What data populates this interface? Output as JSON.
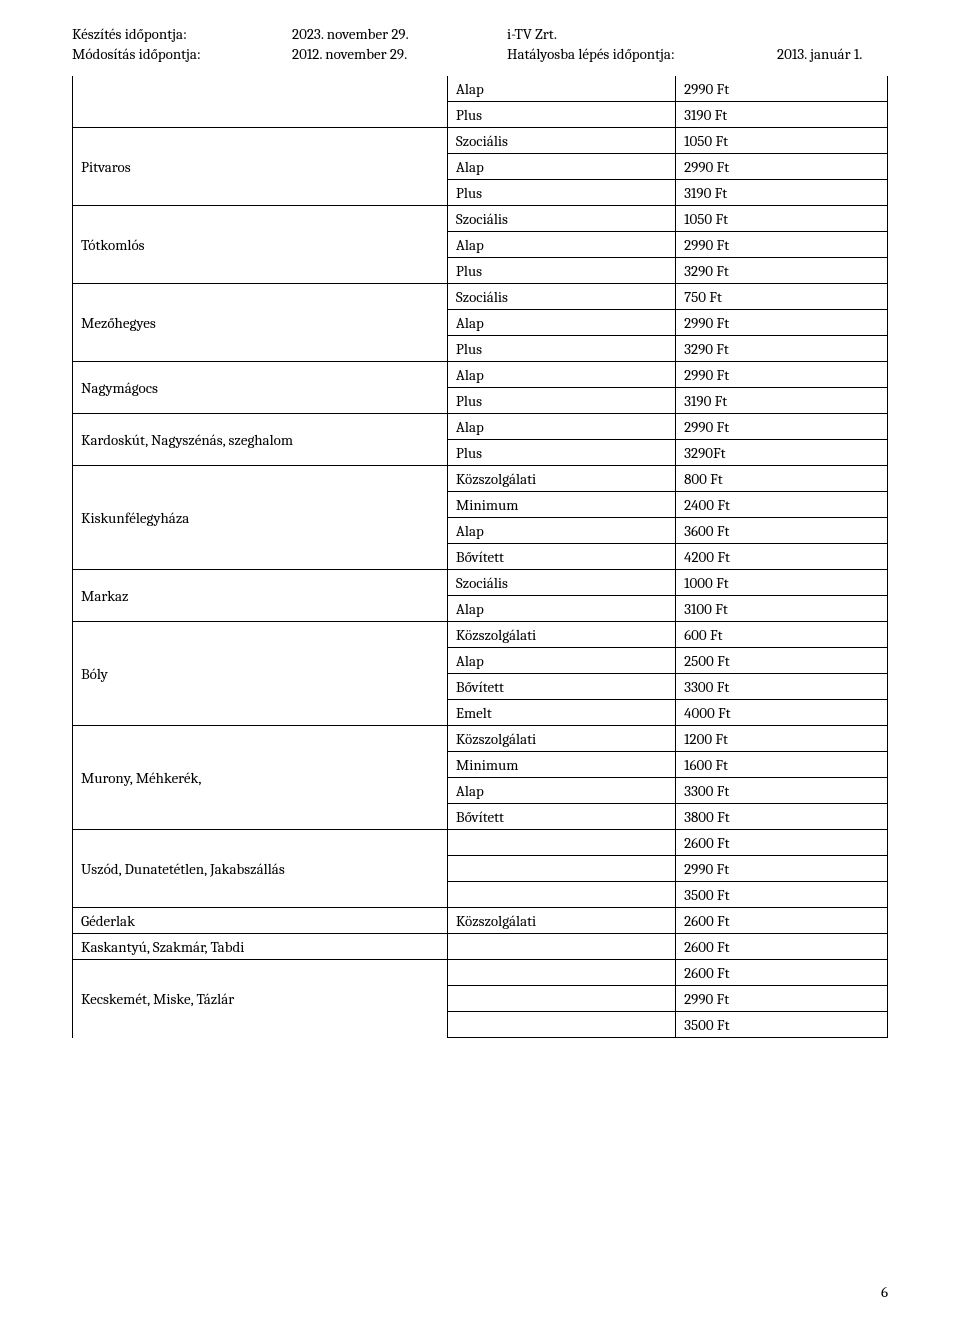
{
  "header": {
    "labels": {
      "keszites": "Készítés időpontja:",
      "modositas": "Módosítás időpontja:"
    },
    "dates": {
      "keszites": "2023. november 29.",
      "modositas": "2012. november 29."
    },
    "right": {
      "company": "i-TV Zrt.",
      "hataly_label": "Hatályosba lépés időpontja:",
      "hataly_date": "2013. január 1."
    }
  },
  "groups": [
    {
      "name": "",
      "tiers": [
        {
          "label": "Alap",
          "price": "2990 Ft"
        },
        {
          "label": "Plus",
          "price": "3190 Ft"
        }
      ]
    },
    {
      "name": "Pitvaros",
      "tiers": [
        {
          "label": "Szociális",
          "price": "1050 Ft"
        },
        {
          "label": "Alap",
          "price": "2990 Ft"
        },
        {
          "label": "Plus",
          "price": "3190 Ft"
        }
      ]
    },
    {
      "name": "Tótkomlós",
      "tiers": [
        {
          "label": "Szociális",
          "price": "1050 Ft"
        },
        {
          "label": "Alap",
          "price": "2990 Ft"
        },
        {
          "label": "Plus",
          "price": "3290 Ft"
        }
      ]
    },
    {
      "name": "Mezőhegyes",
      "tiers": [
        {
          "label": "Szociális",
          "price": "750 Ft"
        },
        {
          "label": "Alap",
          "price": "2990 Ft"
        },
        {
          "label": "Plus",
          "price": "3290 Ft"
        }
      ]
    },
    {
      "name": "Nagymágocs",
      "tiers": [
        {
          "label": "Alap",
          "price": "2990 Ft"
        },
        {
          "label": "Plus",
          "price": "3190 Ft"
        }
      ]
    },
    {
      "name": "Kardoskút, Nagyszénás, szeghalom",
      "tiers": [
        {
          "label": "Alap",
          "price": "2990 Ft"
        },
        {
          "label": "Plus",
          "price": "3290Ft"
        }
      ]
    },
    {
      "name": "Kiskunfélegyháza",
      "tiers": [
        {
          "label": "Közszolgálati",
          "price": "800 Ft"
        },
        {
          "label": "Minimum",
          "price": "2400 Ft"
        },
        {
          "label": "Alap",
          "price": "3600 Ft"
        },
        {
          "label": "Bővített",
          "price": "4200 Ft"
        }
      ]
    },
    {
      "name": "Markaz",
      "tiers": [
        {
          "label": "Szociális",
          "price": "1000 Ft"
        },
        {
          "label": "Alap",
          "price": "3100 Ft"
        }
      ]
    },
    {
      "name": "Bóly",
      "tiers": [
        {
          "label": "Közszolgálati",
          "price": "600 Ft"
        },
        {
          "label": "Alap",
          "price": "2500 Ft"
        },
        {
          "label": "Bővített",
          "price": "3300 Ft"
        },
        {
          "label": "Emelt",
          "price": "4000 Ft"
        }
      ]
    },
    {
      "name": "Murony, Méhkerék,",
      "tiers": [
        {
          "label": "Közszolgálati",
          "price": "1200 Ft"
        },
        {
          "label": "Minimum",
          "price": "1600 Ft"
        },
        {
          "label": "Alap",
          "price": "3300 Ft"
        },
        {
          "label": "Bővített",
          "price": "3800 Ft"
        }
      ]
    },
    {
      "name": "Uszód, Dunatetétlen, Jakabszállás",
      "tiers": [
        {
          "label": "",
          "price": "2600 Ft"
        },
        {
          "label": "",
          "price": "2990 Ft"
        },
        {
          "label": "",
          "price": "3500 Ft"
        }
      ]
    },
    {
      "name": "Géderlak",
      "tiers": [
        {
          "label": "Közszolgálati",
          "price": "2600 Ft"
        }
      ]
    },
    {
      "name": "Kaskantyú, Szakmár, Tabdi",
      "tiers": [
        {
          "label": "",
          "price": "2600 Ft"
        }
      ]
    },
    {
      "name": "Kecskemét, Miske, Tázlár",
      "tiers": [
        {
          "label": "",
          "price": "2600 Ft"
        },
        {
          "label": "",
          "price": "2990 Ft"
        },
        {
          "label": "",
          "price": "3500 Ft"
        }
      ]
    }
  ],
  "pageNumber": "6"
}
